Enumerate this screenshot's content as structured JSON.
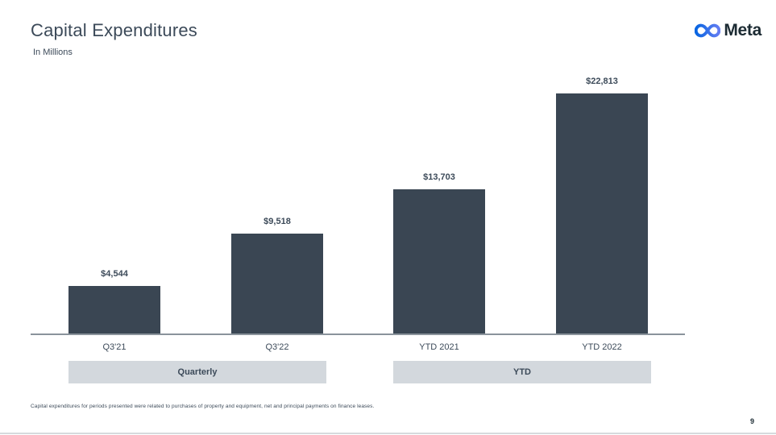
{
  "page": {
    "page_number": "9"
  },
  "header": {
    "title": "Capital Expenditures",
    "subtitle": "In Millions",
    "logo": {
      "icon": "meta-infinity-icon",
      "wordmark": "Meta"
    }
  },
  "footnote": "Capital expenditures for periods presented were related to purchases of property and equipment, net and principal payments on finance leases.",
  "colors": {
    "bar": "#3A4653",
    "text": "#3C4A59",
    "banner_bg": "#D3D8DD",
    "axis_line": "#8A939B",
    "wordmark": "#1C2B33",
    "logo_blue_start": "#0765E1",
    "logo_blue_end": "#647DF2"
  },
  "chart_data": {
    "type": "bar",
    "title": "Capital Expenditures",
    "units": "In Millions",
    "categories": [
      "Q3'21",
      "Q3'22",
      "YTD 2021",
      "YTD 2022"
    ],
    "values": [
      4544,
      9518,
      13703,
      22813
    ],
    "data_labels": [
      "$4,544",
      "$9,518",
      "$13,703",
      "$22,813"
    ],
    "groups": [
      {
        "label": "Quarterly",
        "start": 0,
        "end": 1
      },
      {
        "label": "YTD",
        "start": 2,
        "end": 3
      }
    ],
    "ylim": [
      0,
      22813
    ],
    "xlabel": "",
    "ylabel": "",
    "grid": false,
    "legend": false
  }
}
